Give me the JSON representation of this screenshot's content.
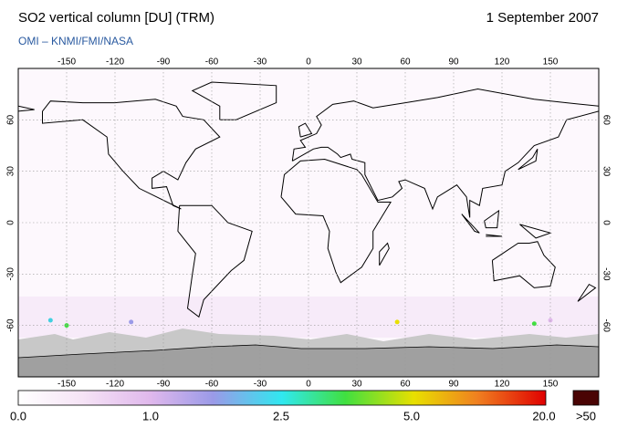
{
  "header": {
    "title": "SO2 vertical column [DU] (TRM)",
    "date": "1 September 2007",
    "subtitle": "OMI  –  KNMI/FMI/NASA"
  },
  "map": {
    "xlim": [
      -180,
      180
    ],
    "ylim": [
      -90,
      90
    ],
    "xticks": [
      -150,
      -120,
      -90,
      -60,
      -30,
      0,
      30,
      60,
      90,
      120,
      150
    ],
    "yticks": [
      60,
      30,
      0,
      -30,
      -60
    ],
    "grid": true
  },
  "colorbar": {
    "labels": [
      "0.0",
      "1.0",
      "2.5",
      "5.0",
      "20.0",
      ">50"
    ]
  }
}
